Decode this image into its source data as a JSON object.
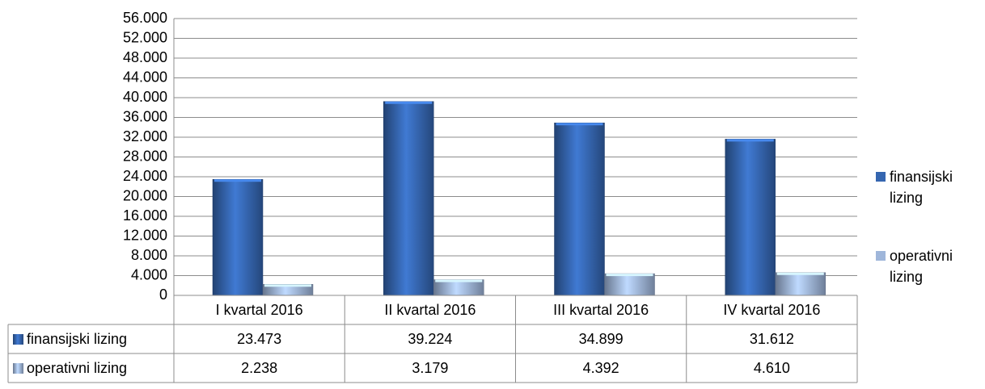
{
  "chart_data": {
    "type": "bar",
    "categories": [
      "I kvartal 2016",
      "II kvartal 2016",
      "III kvartal 2016",
      "IV kvartal 2016"
    ],
    "series": [
      {
        "name": "finansijski lizing",
        "color": "#3566b0",
        "values": [
          23473,
          39224,
          34899,
          31612
        ],
        "value_labels": [
          "23.473",
          "39.224",
          "34.899",
          "31.612"
        ]
      },
      {
        "name": "operativni lizing",
        "color": "#9fb6da",
        "values": [
          2238,
          3179,
          4392,
          4610
        ],
        "value_labels": [
          "2.238",
          "3.179",
          "4.392",
          "4.610"
        ]
      }
    ],
    "ylim": [
      0,
      56000
    ],
    "yticks": [
      0,
      {
        "value": 4000,
        "label": "4.000"
      },
      {
        "value": 8000,
        "label": "8.000"
      },
      {
        "value": 12000,
        "label": "12.000"
      },
      {
        "value": 16000,
        "label": "16.000"
      },
      {
        "value": 20000,
        "label": "20.000"
      },
      {
        "value": 24000,
        "label": "24.000"
      },
      {
        "value": 28000,
        "label": "28.000"
      },
      {
        "value": 32000,
        "label": "32.000"
      },
      {
        "value": 36000,
        "label": "36.000"
      },
      {
        "value": 40000,
        "label": "40.000"
      },
      {
        "value": 44000,
        "label": "44.000"
      },
      {
        "value": 48000,
        "label": "48.000"
      },
      {
        "value": 52000,
        "label": "52.000"
      },
      {
        "value": 56000,
        "label": "56.000"
      }
    ],
    "grid": true,
    "legend": "right",
    "data_table": true
  }
}
